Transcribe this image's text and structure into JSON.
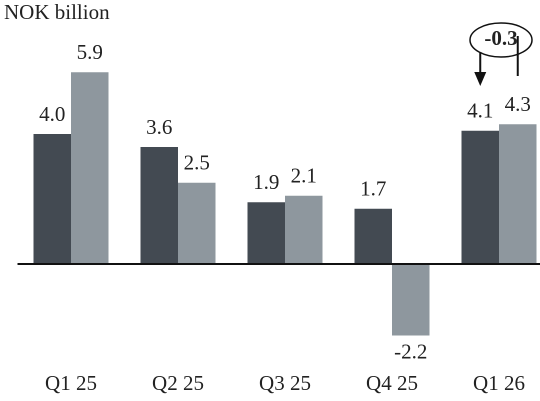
{
  "chart_data": {
    "type": "bar",
    "unit_label": "NOK billion",
    "categories": [
      "Q1 25",
      "Q2 25",
      "Q3 25",
      "Q4 25",
      "Q1 26"
    ],
    "series": [
      {
        "color": "#434a52",
        "values": [
          4.0,
          3.6,
          1.9,
          1.7,
          4.1
        ],
        "value_labels": [
          "4.0",
          "3.6",
          "1.9",
          "1.7",
          "4.1"
        ]
      },
      {
        "color": "#8e979e",
        "values": [
          5.9,
          2.5,
          2.1,
          -2.2,
          4.3
        ],
        "value_labels": [
          "5.9",
          "2.5",
          "2.1",
          "-2.2",
          "4.3"
        ]
      }
    ],
    "ylim": [
      -4,
      7
    ],
    "annotation": "-0.3"
  }
}
